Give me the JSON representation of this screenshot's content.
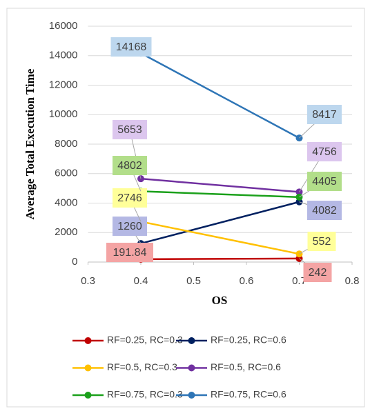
{
  "chart_data": {
    "type": "line",
    "x_label": "OS",
    "y_label": "Average Total Execution Time",
    "x": [
      0.4,
      0.7
    ],
    "xlim": [
      0.3,
      0.8
    ],
    "xticks": [
      0.3,
      0.4,
      0.5,
      0.6,
      0.7,
      0.8
    ],
    "ylim": [
      0,
      16000
    ],
    "yticks": [
      0,
      2000,
      4000,
      6000,
      8000,
      10000,
      12000,
      14000,
      16000
    ],
    "grid": true,
    "series": [
      {
        "name": "RF=0.25, RC=0.3",
        "color": "#c00000",
        "label_color": "#f4a4a4",
        "values": [
          191.84,
          242
        ]
      },
      {
        "name": "RF=0.25, RC=0.6",
        "color": "#002060",
        "label_color": "#b4b8e4",
        "values": [
          1260,
          4082
        ]
      },
      {
        "name": "RF=0.5, RC=0.3",
        "color": "#ffc000",
        "label_color": "#ffff99",
        "values": [
          2746,
          552
        ]
      },
      {
        "name": "RF=0.5, RC=0.6",
        "color": "#7030a0",
        "label_color": "#dcc6ee",
        "values": [
          5653,
          4756
        ]
      },
      {
        "name": "RF=0.75, RC=0.3",
        "color": "#1aa01a",
        "label_color": "#b2de8a",
        "values": [
          4802,
          4405
        ]
      },
      {
        "name": "RF=0.75, RC=0.6",
        "color": "#2e75b6",
        "label_color": "#bdd7ee",
        "values": [
          14168,
          8417
        ]
      }
    ]
  }
}
